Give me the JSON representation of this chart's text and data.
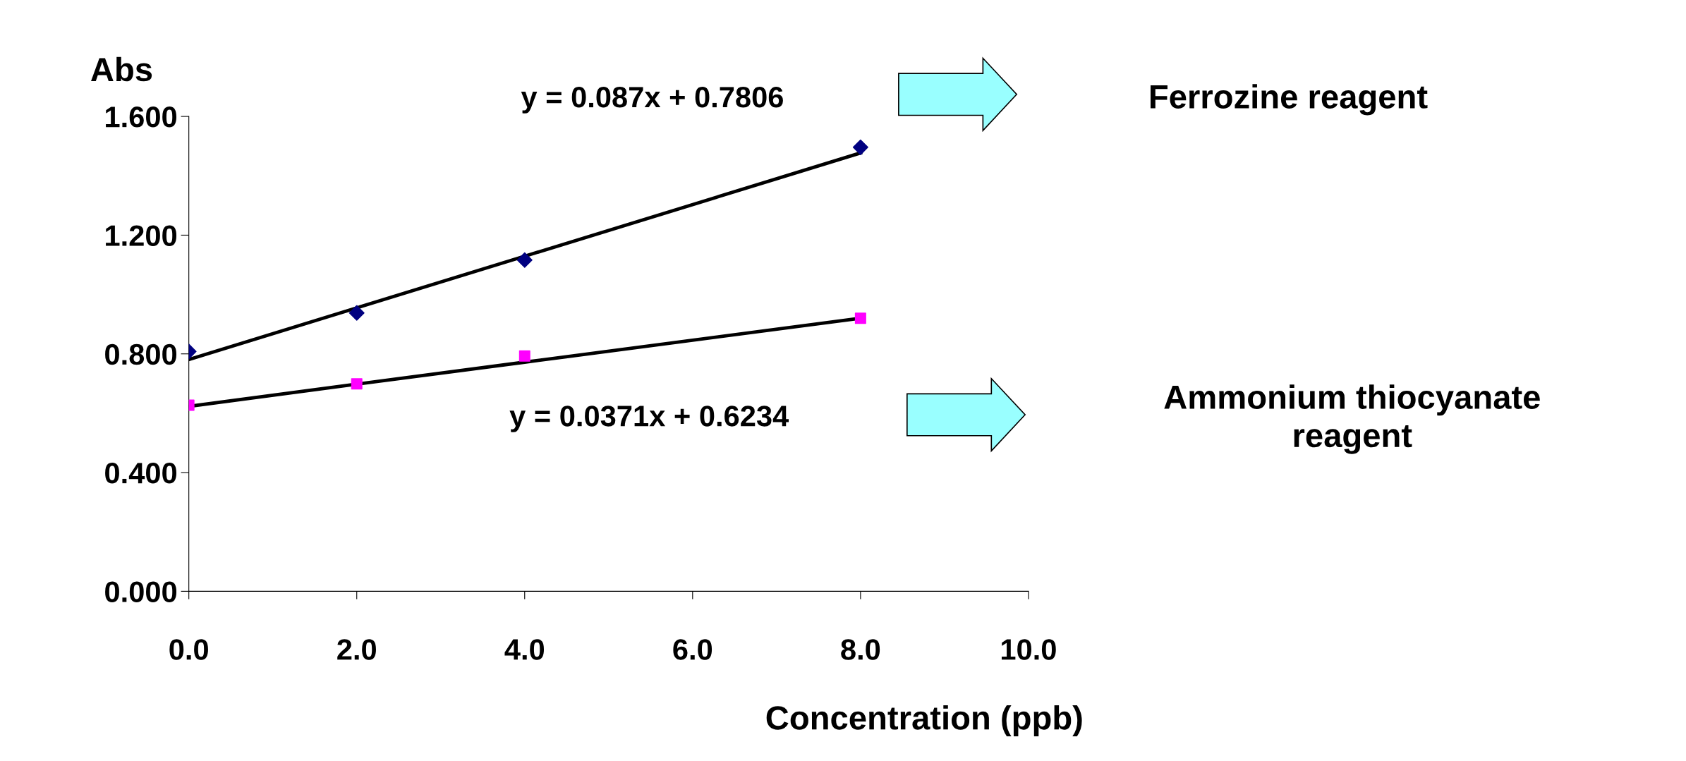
{
  "chart_data": {
    "type": "scatter",
    "ylabel": "Abs",
    "xlabel": "Concentration (ppb)",
    "x": [
      0,
      2,
      4,
      8
    ],
    "series": [
      {
        "color": "#000080",
        "marker": "diamond",
        "values": [
          0.808,
          0.938,
          1.116,
          1.496
        ]
      },
      {
        "color": "#ff00ff",
        "marker": "square",
        "values": [
          0.627,
          0.699,
          0.793,
          0.92
        ]
      },
      {
        "type": "line",
        "color": "#000000",
        "marker": "none",
        "values": [
          0.781,
          0.955,
          1.129,
          1.477
        ]
      },
      {
        "type": "line",
        "color": "#000000",
        "marker": "none",
        "values": [
          0.623,
          0.698,
          0.772,
          0.92
        ]
      }
    ],
    "xlim": [
      0,
      10
    ],
    "ylim": [
      0,
      1.6
    ],
    "xticks": [
      {
        "value": 0,
        "label": "0.0"
      },
      {
        "value": 2,
        "label": "2.0"
      },
      {
        "value": 4,
        "label": "4.0"
      },
      {
        "value": 6,
        "label": "6.0"
      },
      {
        "value": 8,
        "label": "8.0"
      },
      {
        "value": 10,
        "label": "10.0"
      }
    ],
    "yticks": [
      {
        "value": 0,
        "label": "0.000"
      },
      {
        "value": 0.4,
        "label": "0.400"
      },
      {
        "value": 0.8,
        "label": "0.800"
      },
      {
        "value": 1.2,
        "label": "1.200"
      },
      {
        "value": 1.6,
        "label": "1.600"
      }
    ],
    "grid": false,
    "legend": false,
    "annotations": [
      "y = 0.087x + 0.7806",
      "Ferrozine reagent",
      "y = 0.0371x + 0.6234",
      "Ammonium thiocyanate\nreagent"
    ]
  }
}
